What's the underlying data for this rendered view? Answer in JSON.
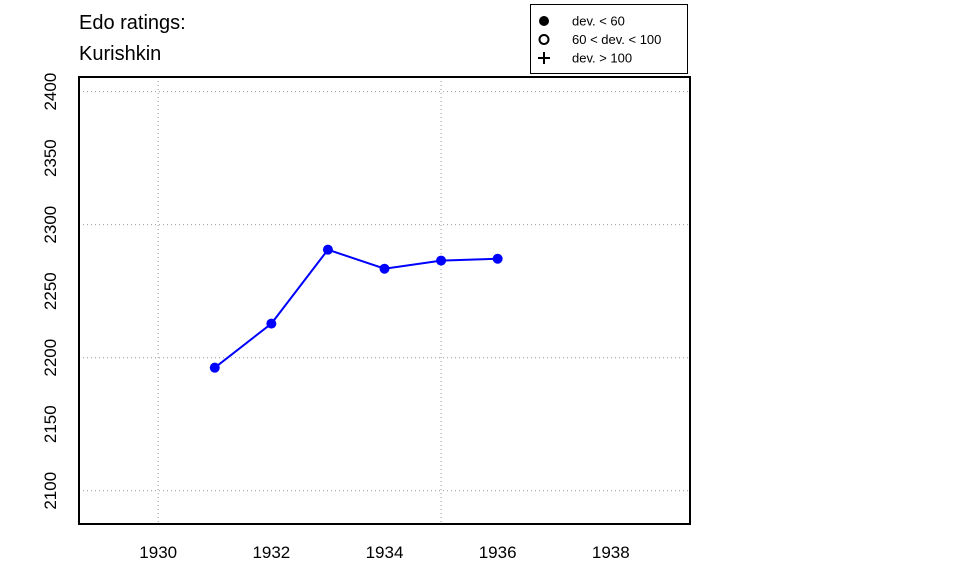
{
  "chart_data": {
    "type": "line",
    "title": [
      "Edo ratings:",
      "Kurishkin"
    ],
    "x": [
      1931,
      1932,
      1933,
      1934,
      1935,
      1936
    ],
    "series": [
      {
        "name": "Kurishkin",
        "color": "#0000ff",
        "marker": "filled-circle",
        "values": [
          2192.5,
          2225.6,
          2281.2,
          2266.9,
          2273,
          2274.4
        ]
      }
    ],
    "xlim": [
      1928.6,
      1939.4
    ],
    "xticks": [
      1930,
      1932,
      1934,
      1936,
      1938
    ],
    "ylim": [
      2075,
      2411
    ],
    "yticks": [
      2100,
      2150,
      2200,
      2250,
      2300,
      2350,
      2400
    ],
    "grid": true,
    "xgrid": [
      1930,
      1935
    ],
    "ygrid": [
      2100,
      2200,
      2300,
      2400
    ],
    "legend_position": "top-right",
    "legend": [
      {
        "label": "dev. < 60",
        "marker": "filled-circle"
      },
      {
        "label": "60 < dev. < 100",
        "marker": "open-circle"
      },
      {
        "label": "dev. > 100",
        "marker": "plus"
      }
    ]
  }
}
